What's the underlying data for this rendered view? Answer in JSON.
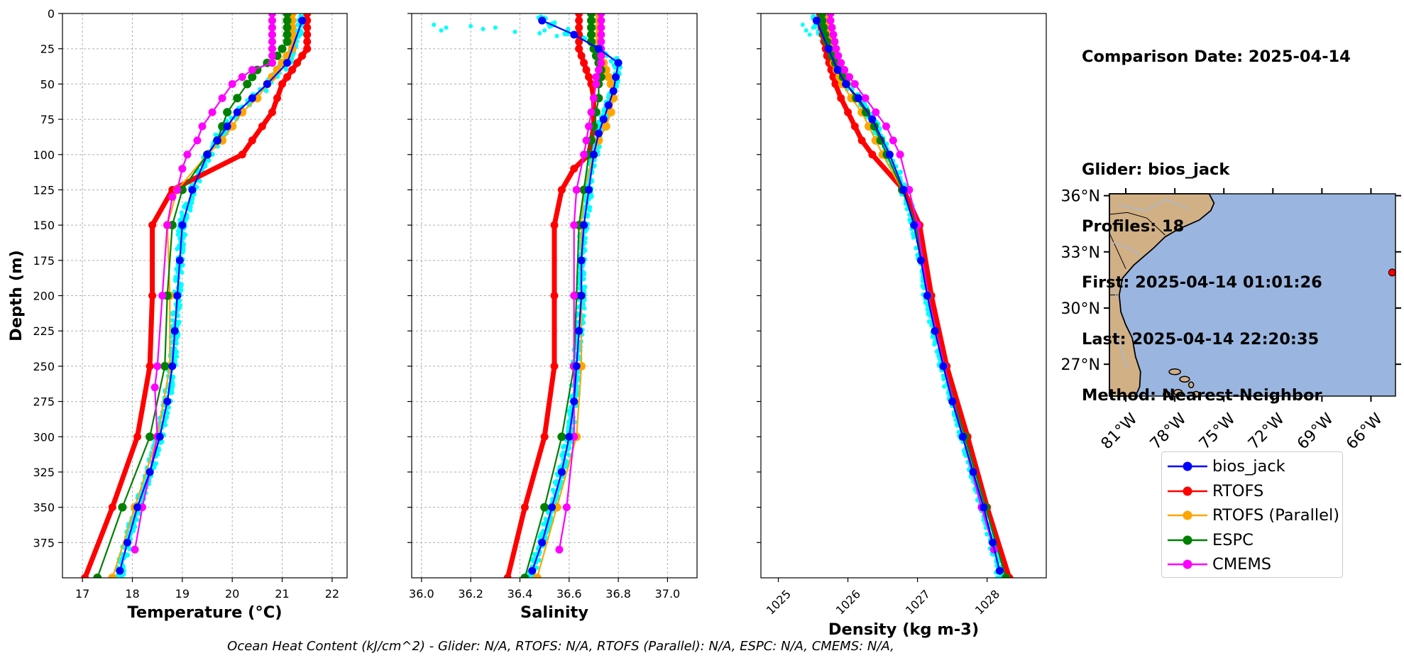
{
  "info": {
    "comparison": "Comparison Date: 2025-04-14",
    "glider": "Glider: bios_jack",
    "profiles": "Profiles: 18",
    "first": "First: 2025-04-14 01:01:26",
    "last": "Last: 2025-04-14 22:20:35",
    "method": "Method: Nearest-Neighbor"
  },
  "footer": "Ocean Heat Content (kJ/cm^2) - Glider: N/A,  RTOFS: N/A,  RTOFS (Parallel): N/A,  ESPC: N/A,  CMEMS: N/A,",
  "legend": [
    {
      "name": "bios_jack",
      "color": "#0000ff"
    },
    {
      "name": "RTOFS",
      "color": "#ff0000"
    },
    {
      "name": "RTOFS (Parallel)",
      "color": "#ffa500"
    },
    {
      "name": "ESPC",
      "color": "#008000"
    },
    {
      "name": "CMEMS",
      "color": "#ff00ff"
    }
  ],
  "map": {
    "lat_ticks": [
      "36°N",
      "33°N",
      "30°N",
      "27°N"
    ],
    "lon_ticks": [
      "81°W",
      "78°W",
      "75°W",
      "72°W",
      "69°W",
      "66°W"
    ],
    "lat_values": [
      36,
      33,
      30,
      27
    ],
    "lon_values": [
      -81,
      -78,
      -75,
      -72,
      -69,
      -66
    ],
    "extent": {
      "lon": [
        -82,
        -64.5
      ],
      "lat": [
        25.3,
        36.1
      ]
    },
    "ocean_color": "#9ab6e0",
    "land_color": "#d1b086",
    "glider_position": {
      "lon": -64.7,
      "lat": 31.9
    }
  },
  "chart_data": [
    {
      "type": "line",
      "xlabel": "Temperature (°C)",
      "ylabel": "Depth (m)",
      "xlim": [
        16.6,
        22.3
      ],
      "ylim": [
        400,
        0
      ],
      "xticks": [
        17,
        18,
        19,
        20,
        21,
        22
      ],
      "yticks": [
        0,
        25,
        50,
        75,
        100,
        125,
        150,
        175,
        200,
        225,
        250,
        275,
        300,
        325,
        350,
        375
      ],
      "grid": true,
      "series": [
        {
          "name": "RTOFS",
          "color": "#ff0000",
          "depth": [
            0,
            5,
            10,
            15,
            20,
            25,
            30,
            35,
            40,
            45,
            50,
            60,
            70,
            80,
            90,
            100,
            125,
            150,
            200,
            250,
            300,
            350,
            400
          ],
          "values": [
            21.5,
            21.5,
            21.5,
            21.5,
            21.5,
            21.5,
            21.4,
            21.3,
            21.2,
            21.1,
            21.0,
            20.9,
            20.8,
            20.6,
            20.4,
            20.2,
            18.8,
            18.4,
            18.4,
            18.35,
            18.1,
            17.6,
            17.05
          ]
        },
        {
          "name": "RTOFS (Parallel)",
          "color": "#ffa500",
          "depth": [
            0,
            5,
            10,
            15,
            20,
            25,
            30,
            35,
            40,
            45,
            50,
            60,
            70,
            80,
            90,
            100,
            125,
            150,
            200,
            250,
            300,
            350,
            400
          ],
          "values": [
            21.2,
            21.2,
            21.2,
            21.2,
            21.2,
            21.2,
            21.1,
            21.0,
            20.9,
            20.8,
            20.7,
            20.5,
            20.2,
            20.0,
            19.8,
            19.5,
            18.9,
            18.7,
            18.75,
            18.75,
            18.5,
            18.05,
            17.6
          ]
        },
        {
          "name": "ESPC",
          "color": "#008000",
          "depth": [
            0,
            5,
            10,
            15,
            20,
            25,
            30,
            35,
            40,
            45,
            50,
            60,
            70,
            80,
            90,
            100,
            125,
            150,
            200,
            250,
            300,
            350,
            400
          ],
          "values": [
            21.1,
            21.1,
            21.1,
            21.1,
            21.1,
            21.0,
            20.9,
            20.7,
            20.5,
            20.4,
            20.3,
            20.1,
            19.9,
            19.8,
            19.7,
            19.5,
            19.0,
            18.8,
            18.7,
            18.65,
            18.35,
            17.8,
            17.3
          ]
        },
        {
          "name": "CMEMS",
          "color": "#ff00ff",
          "depth": [
            0,
            5,
            10,
            15,
            20,
            25,
            30,
            35,
            40,
            45,
            50,
            60,
            70,
            80,
            90,
            100,
            110,
            125,
            130,
            150,
            200,
            250,
            265,
            300,
            350,
            380
          ],
          "values": [
            20.8,
            20.8,
            20.8,
            20.8,
            20.8,
            20.8,
            20.8,
            20.8,
            20.4,
            20.2,
            20.0,
            19.8,
            19.6,
            19.4,
            19.3,
            19.1,
            19.0,
            18.9,
            18.8,
            18.7,
            18.6,
            18.5,
            18.45,
            18.5,
            18.2,
            18.05
          ]
        },
        {
          "name": "bios_jack",
          "color": "#0000ff",
          "depth": [
            5,
            35,
            50,
            60,
            70,
            80,
            90,
            100,
            125,
            150,
            175,
            200,
            225,
            250,
            275,
            300,
            325,
            350,
            375,
            395
          ],
          "values": [
            21.4,
            21.1,
            20.7,
            20.4,
            20.1,
            19.9,
            19.7,
            19.5,
            19.2,
            19.0,
            18.95,
            18.9,
            18.85,
            18.8,
            18.7,
            18.55,
            18.35,
            18.1,
            17.9,
            17.75
          ]
        }
      ],
      "scatter": {
        "name": "glider profiles",
        "color": "#00ffff"
      }
    },
    {
      "type": "line",
      "xlabel": "Salinity",
      "ylim": [
        400,
        0
      ],
      "xlim": [
        35.96,
        37.12
      ],
      "xticks": [
        36.0,
        36.2,
        36.4,
        36.6,
        36.8,
        37.0
      ],
      "grid": true,
      "series": [
        {
          "name": "RTOFS",
          "color": "#ff0000",
          "depth": [
            0,
            5,
            10,
            15,
            20,
            25,
            30,
            35,
            40,
            45,
            50,
            60,
            70,
            80,
            90,
            100,
            110,
            125,
            150,
            200,
            250,
            300,
            350,
            400
          ],
          "values": [
            36.64,
            36.64,
            36.64,
            36.64,
            36.64,
            36.64,
            36.65,
            36.66,
            36.67,
            36.68,
            36.69,
            36.7,
            36.7,
            36.7,
            36.69,
            36.68,
            36.62,
            36.57,
            36.54,
            36.54,
            36.54,
            36.5,
            36.42,
            36.35
          ]
        },
        {
          "name": "RTOFS (Parallel)",
          "color": "#ffa500",
          "depth": [
            0,
            5,
            10,
            15,
            20,
            25,
            30,
            35,
            40,
            45,
            50,
            60,
            70,
            80,
            90,
            100,
            125,
            150,
            200,
            250,
            300,
            350,
            400
          ],
          "values": [
            36.72,
            36.72,
            36.72,
            36.72,
            36.72,
            36.72,
            36.73,
            36.74,
            36.75,
            36.76,
            36.77,
            36.78,
            36.77,
            36.75,
            36.72,
            36.7,
            36.66,
            36.65,
            36.65,
            36.65,
            36.63,
            36.55,
            36.47
          ]
        },
        {
          "name": "ESPC",
          "color": "#008000",
          "depth": [
            0,
            5,
            10,
            15,
            20,
            25,
            30,
            35,
            40,
            45,
            50,
            60,
            70,
            80,
            90,
            100,
            125,
            150,
            200,
            250,
            300,
            350,
            400
          ],
          "values": [
            36.69,
            36.69,
            36.69,
            36.69,
            36.69,
            36.7,
            36.71,
            36.72,
            36.73,
            36.73,
            36.72,
            36.72,
            36.71,
            36.7,
            36.69,
            36.68,
            36.66,
            36.64,
            36.63,
            36.62,
            36.57,
            36.5,
            36.42
          ]
        },
        {
          "name": "CMEMS",
          "color": "#ff00ff",
          "depth": [
            0,
            5,
            10,
            15,
            20,
            25,
            30,
            35,
            40,
            45,
            50,
            60,
            70,
            80,
            90,
            100,
            125,
            150,
            200,
            250,
            300,
            350,
            380
          ],
          "values": [
            36.73,
            36.73,
            36.73,
            36.73,
            36.73,
            36.73,
            36.73,
            36.73,
            36.72,
            36.71,
            36.71,
            36.7,
            36.69,
            36.68,
            36.67,
            36.66,
            36.63,
            36.62,
            36.62,
            36.62,
            36.62,
            36.59,
            36.56
          ]
        },
        {
          "name": "bios_jack",
          "color": "#0000ff",
          "depth": [
            5,
            15,
            25,
            35,
            45,
            55,
            65,
            75,
            85,
            100,
            125,
            150,
            175,
            200,
            225,
            250,
            275,
            300,
            325,
            350,
            375,
            395
          ],
          "values": [
            36.49,
            36.62,
            36.72,
            36.8,
            36.79,
            36.78,
            36.76,
            36.74,
            36.72,
            36.7,
            36.68,
            36.66,
            36.65,
            36.65,
            36.64,
            36.63,
            36.62,
            36.6,
            36.57,
            36.53,
            36.49,
            36.45
          ]
        }
      ],
      "scatter": {
        "name": "glider profiles",
        "color": "#00ffff"
      }
    },
    {
      "type": "line",
      "xlabel": "Density (kg m-3)",
      "ylim": [
        400,
        0
      ],
      "xlim": [
        1024.75,
        1028.85
      ],
      "xticks": [
        1025,
        1026,
        1027,
        1028
      ],
      "grid": false,
      "series": [
        {
          "name": "RTOFS",
          "color": "#ff0000",
          "depth": [
            0,
            5,
            10,
            15,
            20,
            25,
            30,
            35,
            40,
            45,
            50,
            60,
            70,
            80,
            90,
            100,
            125,
            150,
            200,
            250,
            300,
            350,
            400
          ],
          "values": [
            1025.6,
            1025.6,
            1025.62,
            1025.64,
            1025.66,
            1025.68,
            1025.7,
            1025.73,
            1025.76,
            1025.79,
            1025.82,
            1025.9,
            1026.0,
            1026.1,
            1026.2,
            1026.35,
            1026.8,
            1027.03,
            1027.2,
            1027.42,
            1027.72,
            1028.0,
            1028.32
          ]
        },
        {
          "name": "RTOFS (Parallel)",
          "color": "#ffa500",
          "depth": [
            0,
            5,
            10,
            15,
            20,
            25,
            30,
            35,
            40,
            45,
            50,
            60,
            70,
            80,
            90,
            100,
            125,
            150,
            200,
            250,
            300,
            350,
            400
          ],
          "values": [
            1025.68,
            1025.68,
            1025.7,
            1025.72,
            1025.74,
            1025.76,
            1025.78,
            1025.8,
            1025.84,
            1025.88,
            1025.92,
            1026.05,
            1026.2,
            1026.3,
            1026.4,
            1026.5,
            1026.78,
            1026.98,
            1027.15,
            1027.38,
            1027.68,
            1027.98,
            1028.27
          ]
        },
        {
          "name": "ESPC",
          "color": "#008000",
          "depth": [
            0,
            5,
            10,
            15,
            20,
            25,
            30,
            35,
            40,
            45,
            50,
            60,
            70,
            80,
            90,
            100,
            125,
            150,
            200,
            250,
            300,
            350,
            400
          ],
          "values": [
            1025.63,
            1025.63,
            1025.65,
            1025.67,
            1025.7,
            1025.73,
            1025.77,
            1025.82,
            1025.88,
            1025.93,
            1025.98,
            1026.12,
            1026.26,
            1026.38,
            1026.47,
            1026.56,
            1026.78,
            1026.98,
            1027.15,
            1027.38,
            1027.68,
            1027.98,
            1028.27
          ]
        },
        {
          "name": "CMEMS",
          "color": "#ff00ff",
          "depth": [
            0,
            5,
            10,
            15,
            20,
            25,
            30,
            35,
            40,
            45,
            50,
            60,
            70,
            80,
            90,
            100,
            125,
            150,
            200,
            250,
            300,
            350,
            380
          ],
          "values": [
            1025.75,
            1025.75,
            1025.77,
            1025.79,
            1025.81,
            1025.83,
            1025.86,
            1025.9,
            1025.95,
            1026.02,
            1026.1,
            1026.25,
            1026.4,
            1026.55,
            1026.65,
            1026.75,
            1026.88,
            1027.0,
            1027.15,
            1027.38,
            1027.65,
            1027.92,
            1028.1
          ]
        },
        {
          "name": "bios_jack",
          "color": "#0000ff",
          "depth": [
            5,
            25,
            40,
            50,
            60,
            75,
            100,
            125,
            150,
            175,
            200,
            225,
            250,
            275,
            300,
            325,
            350,
            375,
            395
          ],
          "values": [
            1025.55,
            1025.72,
            1025.85,
            1025.97,
            1026.15,
            1026.35,
            1026.6,
            1026.8,
            1026.95,
            1027.05,
            1027.14,
            1027.25,
            1027.37,
            1027.5,
            1027.65,
            1027.8,
            1027.95,
            1028.08,
            1028.18
          ]
        }
      ],
      "scatter": {
        "name": "glider profiles",
        "color": "#00ffff"
      }
    }
  ]
}
